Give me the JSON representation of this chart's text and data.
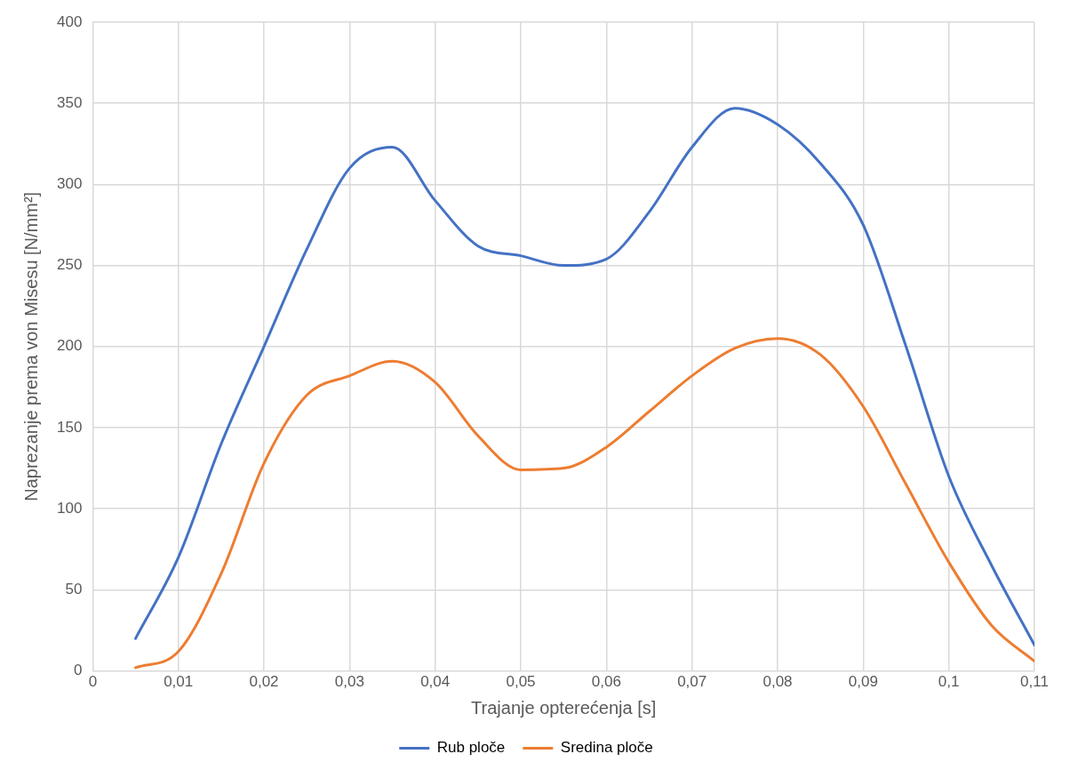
{
  "chart_data": {
    "type": "line",
    "xlabel": "Trajanje opterećenja [s]",
    "ylabel": "Naprezanje prema von Misesu [N/mm²]",
    "x": [
      0.005,
      0.01,
      0.015,
      0.02,
      0.025,
      0.03,
      0.035,
      0.04,
      0.045,
      0.05,
      0.055,
      0.06,
      0.065,
      0.07,
      0.075,
      0.08,
      0.085,
      0.09,
      0.095,
      0.1,
      0.105,
      0.11
    ],
    "series": [
      {
        "name": "Rub ploče",
        "color": "#4472c4",
        "values": [
          20,
          70,
          140,
          200,
          260,
          310,
          323,
          290,
          262,
          256,
          250,
          254,
          283,
          323,
          347,
          337,
          313,
          275,
          200,
          120,
          65,
          16
        ]
      },
      {
        "name": "Sredina ploče",
        "color": "#ed7d31",
        "values": [
          2,
          12,
          60,
          128,
          170,
          182,
          191,
          178,
          145,
          124,
          125,
          138,
          160,
          182,
          199,
          205,
          195,
          163,
          115,
          67,
          28,
          6
        ]
      }
    ],
    "xlim": [
      0,
      0.11
    ],
    "xticks": [
      0,
      {
        "value": 0.01,
        "label": "0,01"
      },
      {
        "value": 0.02,
        "label": "0,02"
      },
      {
        "value": 0.03,
        "label": "0,03"
      },
      {
        "value": 0.04,
        "label": "0,04"
      },
      {
        "value": 0.05,
        "label": "0,05"
      },
      {
        "value": 0.06,
        "label": "0,06"
      },
      {
        "value": 0.07,
        "label": "0,07"
      },
      {
        "value": 0.08,
        "label": "0,08"
      },
      {
        "value": 0.09,
        "label": "0,09"
      },
      {
        "value": 0.1,
        "label": "0,1"
      },
      {
        "value": 0.11,
        "label": "0,11"
      }
    ],
    "ylim": [
      0,
      400
    ],
    "yticks": [
      0,
      50,
      100,
      150,
      200,
      250,
      300,
      350,
      400
    ],
    "grid": true,
    "legend": "bottom",
    "marker": "none",
    "line_style": "solid"
  }
}
